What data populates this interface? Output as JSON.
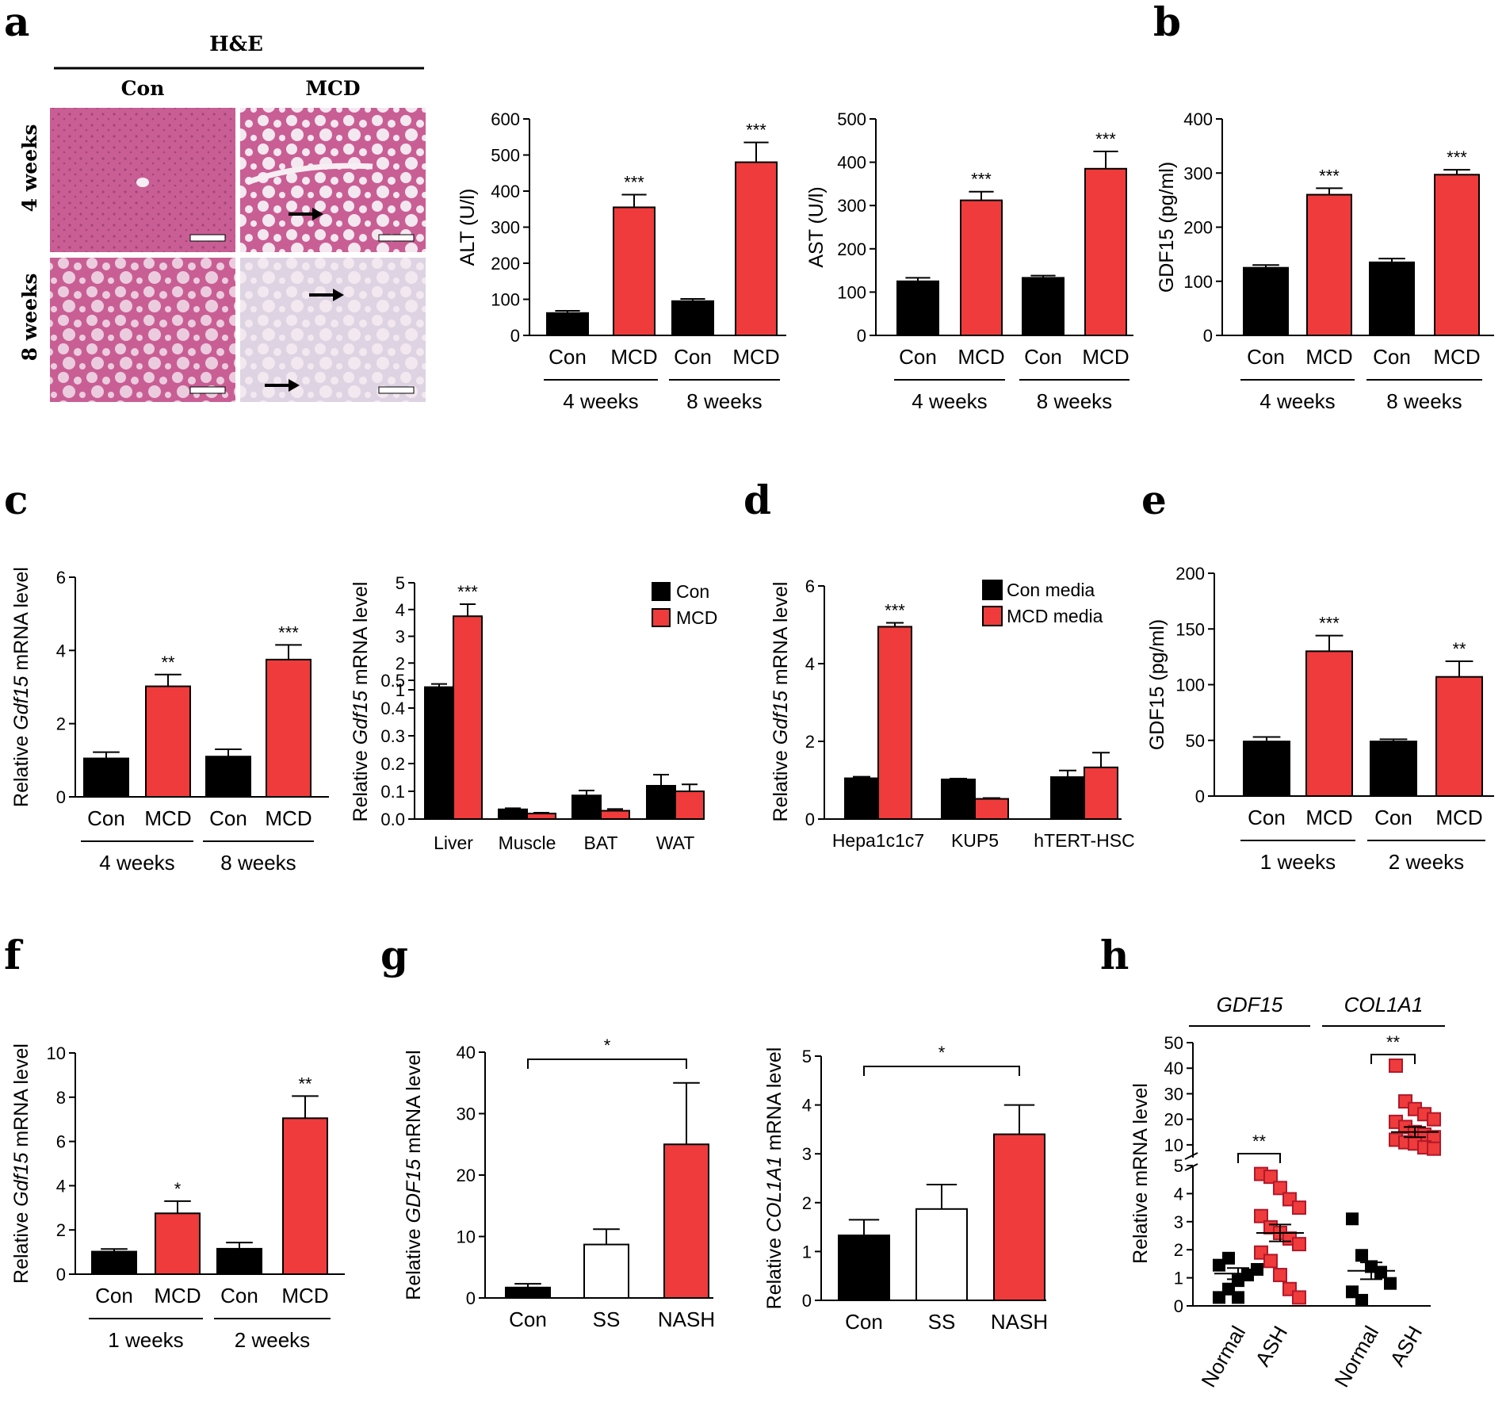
{
  "figure": {
    "colors": {
      "con": "#000000",
      "mcd": "#ef3b3b",
      "white": "#ffffff"
    },
    "panel_labels": {
      "a": "a",
      "b": "b",
      "c": "c",
      "d": "d",
      "e": "e",
      "f": "f",
      "g": "g",
      "h": "h"
    },
    "histology": {
      "stain": "H&E",
      "col_con": "Con",
      "col_mcd": "MCD",
      "row_4w": "4 weeks",
      "row_8w": "8 weeks",
      "colors": {
        "tissue": "#c95e95",
        "tissue_light": "#e7c0d6",
        "vessel": "#f7eef3",
        "steatosis": "#ddd3e2"
      }
    }
  },
  "chart_data": [
    {
      "id": "alt",
      "type": "bar",
      "title": "",
      "ylabel": "ALT (U/l)",
      "xlabel": "",
      "ylim": [
        0,
        600
      ],
      "yticks": [
        0,
        100,
        200,
        300,
        400,
        500,
        600
      ],
      "categories": [
        "Con",
        "MCD",
        "Con",
        "MCD"
      ],
      "values": [
        62,
        355,
        95,
        480
      ],
      "errors": [
        6,
        35,
        6,
        55
      ],
      "bar_colors": [
        "con",
        "mcd",
        "con",
        "mcd"
      ],
      "significance": [
        "",
        "***",
        "",
        "***"
      ],
      "groups": [
        {
          "label": "4 weeks",
          "span": [
            0,
            1
          ]
        },
        {
          "label": "8 weeks",
          "span": [
            2,
            3
          ]
        }
      ]
    },
    {
      "id": "ast",
      "type": "bar",
      "title": "",
      "ylabel": "AST (U/l)",
      "xlabel": "",
      "ylim": [
        0,
        500
      ],
      "yticks": [
        0,
        100,
        200,
        300,
        400,
        500
      ],
      "categories": [
        "Con",
        "MCD",
        "Con",
        "MCD"
      ],
      "values": [
        125,
        312,
        133,
        385
      ],
      "errors": [
        8,
        20,
        5,
        40
      ],
      "bar_colors": [
        "con",
        "mcd",
        "con",
        "mcd"
      ],
      "significance": [
        "",
        "***",
        "",
        "***"
      ],
      "groups": [
        {
          "label": "4 weeks",
          "span": [
            0,
            1
          ]
        },
        {
          "label": "8 weeks",
          "span": [
            2,
            3
          ]
        }
      ]
    },
    {
      "id": "b",
      "type": "bar",
      "title": "",
      "ylabel": "GDF15 (pg/ml)",
      "xlabel": "",
      "ylim": [
        0,
        400
      ],
      "yticks": [
        0,
        100,
        200,
        300,
        400
      ],
      "categories": [
        "Con",
        "MCD",
        "Con",
        "MCD"
      ],
      "values": [
        125,
        260,
        135,
        297
      ],
      "errors": [
        5,
        12,
        7,
        9
      ],
      "bar_colors": [
        "con",
        "mcd",
        "con",
        "mcd"
      ],
      "significance": [
        "",
        "***",
        "",
        "***"
      ],
      "groups": [
        {
          "label": "4 weeks",
          "span": [
            0,
            1
          ]
        },
        {
          "label": "8 weeks",
          "span": [
            2,
            3
          ]
        }
      ]
    },
    {
      "id": "c1",
      "type": "bar",
      "title": "",
      "ylabel_pre": "Relative ",
      "ylabel_it": "Gdf15",
      "ylabel_post": " mRNA level",
      "xlabel": "",
      "ylim": [
        0,
        6
      ],
      "yticks": [
        0,
        2,
        4,
        6
      ],
      "categories": [
        "Con",
        "MCD",
        "Con",
        "MCD"
      ],
      "values": [
        1.05,
        3.02,
        1.1,
        3.75
      ],
      "errors": [
        0.17,
        0.32,
        0.2,
        0.4
      ],
      "bar_colors": [
        "con",
        "mcd",
        "con",
        "mcd"
      ],
      "significance": [
        "",
        "**",
        "",
        "***"
      ],
      "groups": [
        {
          "label": "4 weeks",
          "span": [
            0,
            1
          ]
        },
        {
          "label": "8 weeks",
          "span": [
            2,
            3
          ]
        }
      ]
    },
    {
      "id": "c2",
      "type": "bar",
      "title": "",
      "ylabel_pre": "Relative ",
      "ylabel_it": "Gdf15",
      "ylabel_post": " mRNA level",
      "xlabel": "",
      "y_break": {
        "lower": [
          0,
          0.5
        ],
        "upper": [
          1,
          5
        ]
      },
      "yticks_lower": [
        "0.0",
        "0.1",
        "0.2",
        "0.3",
        "0.4",
        "0.5"
      ],
      "yticks_upper": [
        "1",
        "2",
        "3",
        "4",
        "5"
      ],
      "categories": [
        "Liver",
        "Muscle",
        "BAT",
        "WAT"
      ],
      "series": [
        {
          "name": "Con",
          "values": [
            1.1,
            0.035,
            0.085,
            0.12
          ],
          "errors": [
            0.12,
            0.004,
            0.018,
            0.04
          ]
        },
        {
          "name": "MCD",
          "values": [
            3.75,
            0.02,
            0.03,
            0.1
          ],
          "errors": [
            0.45,
            0.003,
            0.006,
            0.025
          ]
        }
      ],
      "significance": [
        "***",
        "",
        "",
        ""
      ],
      "legend": [
        "Con",
        "MCD"
      ],
      "legend_position": "top-right"
    },
    {
      "id": "d",
      "type": "bar",
      "title": "",
      "ylabel_pre": "Relative ",
      "ylabel_it": "Gdf15",
      "ylabel_post": " mRNA level",
      "xlabel": "",
      "ylim": [
        0,
        6
      ],
      "yticks": [
        0,
        2,
        4,
        6
      ],
      "categories": [
        "Hepa1c1c7",
        "KUP5",
        "hTERT-HSC"
      ],
      "series": [
        {
          "name": "Con media",
          "values": [
            1.05,
            1.02,
            1.08
          ],
          "errors": [
            0.04,
            0.02,
            0.17
          ]
        },
        {
          "name": "MCD media",
          "values": [
            4.95,
            0.52,
            1.33
          ],
          "errors": [
            0.1,
            0.02,
            0.38
          ]
        }
      ],
      "significance": [
        "***",
        "",
        ""
      ],
      "legend": [
        "Con media",
        "MCD media"
      ],
      "legend_position": "top-right"
    },
    {
      "id": "e",
      "type": "bar",
      "title": "",
      "ylabel": "GDF15 (pg/ml)",
      "xlabel": "",
      "ylim": [
        0,
        200
      ],
      "yticks": [
        0,
        50,
        100,
        150,
        200
      ],
      "categories": [
        "Con",
        "MCD",
        "Con",
        "MCD"
      ],
      "values": [
        49,
        130,
        49,
        107
      ],
      "errors": [
        4,
        14,
        2,
        14
      ],
      "bar_colors": [
        "con",
        "mcd",
        "con",
        "mcd"
      ],
      "significance": [
        "",
        "***",
        "",
        "**"
      ],
      "groups": [
        {
          "label": "1 weeks",
          "span": [
            0,
            1
          ]
        },
        {
          "label": "2 weeks",
          "span": [
            2,
            3
          ]
        }
      ]
    },
    {
      "id": "f",
      "type": "bar",
      "title": "",
      "ylabel_pre": "Relative ",
      "ylabel_it": "Gdf15",
      "ylabel_post": " mRNA level",
      "xlabel": "",
      "ylim": [
        0,
        10
      ],
      "yticks": [
        0,
        2,
        4,
        6,
        8,
        10
      ],
      "categories": [
        "Con",
        "MCD",
        "Con",
        "MCD"
      ],
      "values": [
        1.02,
        2.75,
        1.15,
        7.05
      ],
      "errors": [
        0.12,
        0.55,
        0.28,
        1.0
      ],
      "bar_colors": [
        "con",
        "mcd",
        "con",
        "mcd"
      ],
      "significance": [
        "",
        "*",
        "",
        "**"
      ],
      "groups": [
        {
          "label": "1 weeks",
          "span": [
            0,
            1
          ]
        },
        {
          "label": "2 weeks",
          "span": [
            2,
            3
          ]
        }
      ]
    },
    {
      "id": "g1",
      "type": "bar",
      "title": "",
      "ylabel_pre": "Relative ",
      "ylabel_it": "GDF15",
      "ylabel_post": " mRNA level",
      "xlabel": "",
      "ylim": [
        0,
        40
      ],
      "yticks": [
        0,
        10,
        20,
        30,
        40
      ],
      "categories": [
        "Con",
        "SS",
        "NASH"
      ],
      "values": [
        1.7,
        8.7,
        25
      ],
      "errors": [
        0.6,
        2.5,
        10
      ],
      "bar_colors": [
        "con",
        "white",
        "mcd"
      ],
      "comparison": {
        "from": 0,
        "to": 2,
        "label": "*"
      }
    },
    {
      "id": "g2",
      "type": "bar",
      "title": "",
      "ylabel_pre": "Relative ",
      "ylabel_it": "COL1A1",
      "ylabel_post": " mRNA level",
      "xlabel": "",
      "ylim": [
        0,
        5
      ],
      "yticks": [
        0,
        1,
        2,
        3,
        4,
        5
      ],
      "categories": [
        "Con",
        "SS",
        "NASH"
      ],
      "values": [
        1.33,
        1.87,
        3.4
      ],
      "errors": [
        0.32,
        0.5,
        0.6
      ],
      "bar_colors": [
        "con",
        "white",
        "mcd"
      ],
      "comparison": {
        "from": 0,
        "to": 2,
        "label": "*"
      }
    },
    {
      "id": "h",
      "type": "scatter",
      "title": "",
      "ylabel": "Relative mRNA level",
      "xlabel": "",
      "y_break": {
        "lower": [
          0,
          5
        ],
        "upper": [
          5,
          50
        ]
      },
      "yticks_lower": [
        "0",
        "1",
        "2",
        "3",
        "4",
        "5"
      ],
      "yticks_upper": [
        "10",
        "20",
        "30",
        "40",
        "50"
      ],
      "categories": [
        "Normal",
        "ASH",
        "Normal",
        "ASH"
      ],
      "genes": [
        {
          "label": "GDF15",
          "span": [
            0,
            1
          ]
        },
        {
          "label": "COL1A1",
          "span": [
            2,
            3
          ]
        }
      ],
      "groups": [
        {
          "name": "Normal",
          "gene": "GDF15",
          "color": "con",
          "mean": 1.15,
          "sem": 0.2,
          "points": [
            0.3,
            0.6,
            0.9,
            1.1,
            1.3,
            1.45,
            1.7,
            0.3
          ]
        },
        {
          "name": "ASH",
          "gene": "GDF15",
          "color": "mcd",
          "mean": 2.6,
          "sem": 0.3,
          "points": [
            4.7,
            4.6,
            4.2,
            3.8,
            3.5,
            3.2,
            2.8,
            2.6,
            2.4,
            2.2,
            1.9,
            1.6,
            1.1,
            0.6,
            0.3
          ]
        },
        {
          "name": "Normal",
          "gene": "COL1A1",
          "color": "con",
          "mean": 1.25,
          "sem": 0.3,
          "points": [
            3.1,
            1.8,
            1.4,
            1.2,
            0.8,
            0.5,
            0.2
          ]
        },
        {
          "name": "ASH",
          "gene": "COL1A1",
          "color": "mcd",
          "mean": 15,
          "sem": 2.0,
          "points": [
            41,
            27,
            24,
            22,
            20,
            19,
            17,
            15,
            14,
            13,
            12,
            11,
            10.5,
            9,
            8.5
          ]
        }
      ],
      "comparisons": [
        {
          "from": 0,
          "to": 1,
          "label": "**"
        },
        {
          "from": 2,
          "to": 3,
          "label": "**"
        }
      ]
    }
  ]
}
